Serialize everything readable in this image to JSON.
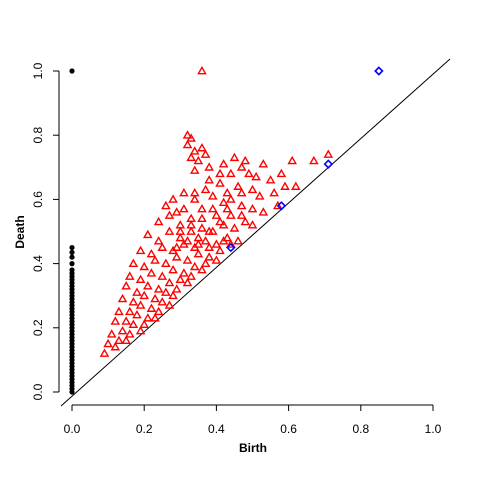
{
  "chart_data": {
    "type": "scatter",
    "title": "",
    "xlabel": "Birth",
    "ylabel": "Death",
    "xlim": [
      0.0,
      1.0
    ],
    "ylim": [
      0.0,
      1.0
    ],
    "x_ticks": [
      "0.0",
      "0.2",
      "0.4",
      "0.6",
      "0.8",
      "1.0"
    ],
    "y_ticks": [
      "0.0",
      "0.2",
      "0.4",
      "0.6",
      "0.8",
      "1.0"
    ],
    "grid": false,
    "legend": "none",
    "diagonal": true,
    "series": [
      {
        "marker": "filled-circle",
        "color": "#000000",
        "points": [
          [
            0,
            1.0
          ],
          [
            0,
            0.45
          ],
          [
            0,
            0.435
          ],
          [
            0,
            0.42
          ],
          [
            0,
            0.4
          ],
          [
            0,
            0.38
          ],
          [
            0,
            0.37
          ],
          [
            0,
            0.36
          ],
          [
            0,
            0.35
          ],
          [
            0,
            0.34
          ],
          [
            0,
            0.33
          ],
          [
            0,
            0.32
          ],
          [
            0,
            0.31
          ],
          [
            0,
            0.3
          ],
          [
            0,
            0.29
          ],
          [
            0,
            0.28
          ],
          [
            0,
            0.27
          ],
          [
            0,
            0.26
          ],
          [
            0,
            0.25
          ],
          [
            0,
            0.24
          ],
          [
            0,
            0.23
          ],
          [
            0,
            0.22
          ],
          [
            0,
            0.21
          ],
          [
            0,
            0.2
          ],
          [
            0,
            0.19
          ],
          [
            0,
            0.18
          ],
          [
            0,
            0.17
          ],
          [
            0,
            0.16
          ],
          [
            0,
            0.15
          ],
          [
            0,
            0.14
          ],
          [
            0,
            0.13
          ],
          [
            0,
            0.12
          ],
          [
            0,
            0.11
          ],
          [
            0,
            0.1
          ],
          [
            0,
            0.09
          ],
          [
            0,
            0.08
          ],
          [
            0,
            0.07
          ],
          [
            0,
            0.06
          ],
          [
            0,
            0.05
          ],
          [
            0,
            0.04
          ],
          [
            0,
            0.03
          ],
          [
            0,
            0.02
          ],
          [
            0,
            0.01
          ],
          [
            0,
            0.0
          ]
        ]
      },
      {
        "marker": "open-triangle",
        "color": "#ff0000",
        "points": [
          [
            0.36,
            1.0
          ],
          [
            0.32,
            0.8
          ],
          [
            0.33,
            0.79
          ],
          [
            0.32,
            0.77
          ],
          [
            0.34,
            0.75
          ],
          [
            0.36,
            0.76
          ],
          [
            0.37,
            0.74
          ],
          [
            0.33,
            0.73
          ],
          [
            0.35,
            0.72
          ],
          [
            0.38,
            0.7
          ],
          [
            0.34,
            0.69
          ],
          [
            0.42,
            0.71
          ],
          [
            0.45,
            0.73
          ],
          [
            0.47,
            0.7
          ],
          [
            0.49,
            0.68
          ],
          [
            0.51,
            0.67
          ],
          [
            0.44,
            0.68
          ],
          [
            0.48,
            0.72
          ],
          [
            0.53,
            0.71
          ],
          [
            0.61,
            0.72
          ],
          [
            0.58,
            0.68
          ],
          [
            0.55,
            0.66
          ],
          [
            0.59,
            0.64
          ],
          [
            0.62,
            0.64
          ],
          [
            0.67,
            0.72
          ],
          [
            0.71,
            0.74
          ],
          [
            0.26,
            0.58
          ],
          [
            0.28,
            0.6
          ],
          [
            0.31,
            0.62
          ],
          [
            0.29,
            0.56
          ],
          [
            0.31,
            0.57
          ],
          [
            0.34,
            0.6
          ],
          [
            0.37,
            0.63
          ],
          [
            0.39,
            0.61
          ],
          [
            0.41,
            0.65
          ],
          [
            0.43,
            0.62
          ],
          [
            0.46,
            0.64
          ],
          [
            0.5,
            0.63
          ],
          [
            0.52,
            0.61
          ],
          [
            0.56,
            0.62
          ],
          [
            0.24,
            0.53
          ],
          [
            0.27,
            0.55
          ],
          [
            0.3,
            0.52
          ],
          [
            0.33,
            0.54
          ],
          [
            0.36,
            0.57
          ],
          [
            0.4,
            0.55
          ],
          [
            0.43,
            0.57
          ],
          [
            0.47,
            0.58
          ],
          [
            0.5,
            0.57
          ],
          [
            0.53,
            0.56
          ],
          [
            0.57,
            0.58
          ],
          [
            0.21,
            0.49
          ],
          [
            0.24,
            0.47
          ],
          [
            0.27,
            0.5
          ],
          [
            0.3,
            0.48
          ],
          [
            0.33,
            0.5
          ],
          [
            0.36,
            0.51
          ],
          [
            0.39,
            0.5
          ],
          [
            0.42,
            0.52
          ],
          [
            0.45,
            0.51
          ],
          [
            0.48,
            0.53
          ],
          [
            0.5,
            0.52
          ],
          [
            0.19,
            0.44
          ],
          [
            0.22,
            0.43
          ],
          [
            0.25,
            0.45
          ],
          [
            0.28,
            0.44
          ],
          [
            0.31,
            0.46
          ],
          [
            0.34,
            0.45
          ],
          [
            0.37,
            0.47
          ],
          [
            0.4,
            0.46
          ],
          [
            0.43,
            0.48
          ],
          [
            0.46,
            0.47
          ],
          [
            0.17,
            0.4
          ],
          [
            0.2,
            0.39
          ],
          [
            0.23,
            0.41
          ],
          [
            0.26,
            0.4
          ],
          [
            0.29,
            0.42
          ],
          [
            0.32,
            0.41
          ],
          [
            0.35,
            0.43
          ],
          [
            0.38,
            0.42
          ],
          [
            0.41,
            0.44
          ],
          [
            0.44,
            0.46
          ],
          [
            0.16,
            0.36
          ],
          [
            0.19,
            0.35
          ],
          [
            0.22,
            0.37
          ],
          [
            0.25,
            0.36
          ],
          [
            0.28,
            0.38
          ],
          [
            0.31,
            0.37
          ],
          [
            0.34,
            0.39
          ],
          [
            0.37,
            0.4
          ],
          [
            0.4,
            0.41
          ],
          [
            0.15,
            0.33
          ],
          [
            0.18,
            0.31
          ],
          [
            0.21,
            0.33
          ],
          [
            0.24,
            0.32
          ],
          [
            0.27,
            0.34
          ],
          [
            0.3,
            0.35
          ],
          [
            0.33,
            0.36
          ],
          [
            0.36,
            0.38
          ],
          [
            0.14,
            0.29
          ],
          [
            0.17,
            0.28
          ],
          [
            0.2,
            0.3
          ],
          [
            0.23,
            0.29
          ],
          [
            0.26,
            0.31
          ],
          [
            0.29,
            0.32
          ],
          [
            0.32,
            0.34
          ],
          [
            0.13,
            0.25
          ],
          [
            0.16,
            0.25
          ],
          [
            0.19,
            0.27
          ],
          [
            0.22,
            0.26
          ],
          [
            0.25,
            0.28
          ],
          [
            0.28,
            0.3
          ],
          [
            0.12,
            0.22
          ],
          [
            0.15,
            0.22
          ],
          [
            0.18,
            0.24
          ],
          [
            0.21,
            0.23
          ],
          [
            0.24,
            0.25
          ],
          [
            0.27,
            0.27
          ],
          [
            0.11,
            0.18
          ],
          [
            0.14,
            0.19
          ],
          [
            0.17,
            0.21
          ],
          [
            0.2,
            0.21
          ],
          [
            0.23,
            0.23
          ],
          [
            0.1,
            0.15
          ],
          [
            0.13,
            0.16
          ],
          [
            0.16,
            0.18
          ],
          [
            0.19,
            0.19
          ],
          [
            0.09,
            0.12
          ],
          [
            0.12,
            0.14
          ],
          [
            0.15,
            0.16
          ],
          [
            0.34,
            0.62
          ],
          [
            0.38,
            0.66
          ],
          [
            0.41,
            0.68
          ],
          [
            0.44,
            0.6
          ],
          [
            0.47,
            0.62
          ],
          [
            0.35,
            0.48
          ],
          [
            0.38,
            0.5
          ],
          [
            0.41,
            0.53
          ],
          [
            0.44,
            0.55
          ],
          [
            0.47,
            0.55
          ],
          [
            0.29,
            0.45
          ],
          [
            0.32,
            0.47
          ],
          [
            0.35,
            0.46
          ],
          [
            0.38,
            0.45
          ],
          [
            0.42,
            0.47
          ],
          [
            0.3,
            0.5
          ],
          [
            0.33,
            0.52
          ],
          [
            0.36,
            0.54
          ],
          [
            0.39,
            0.57
          ],
          [
            0.42,
            0.59
          ]
        ]
      },
      {
        "marker": "open-diamond",
        "color": "#0000ff",
        "points": [
          [
            0.85,
            1.0
          ],
          [
            0.71,
            0.71
          ],
          [
            0.58,
            0.58
          ],
          [
            0.44,
            0.45
          ]
        ]
      }
    ]
  }
}
